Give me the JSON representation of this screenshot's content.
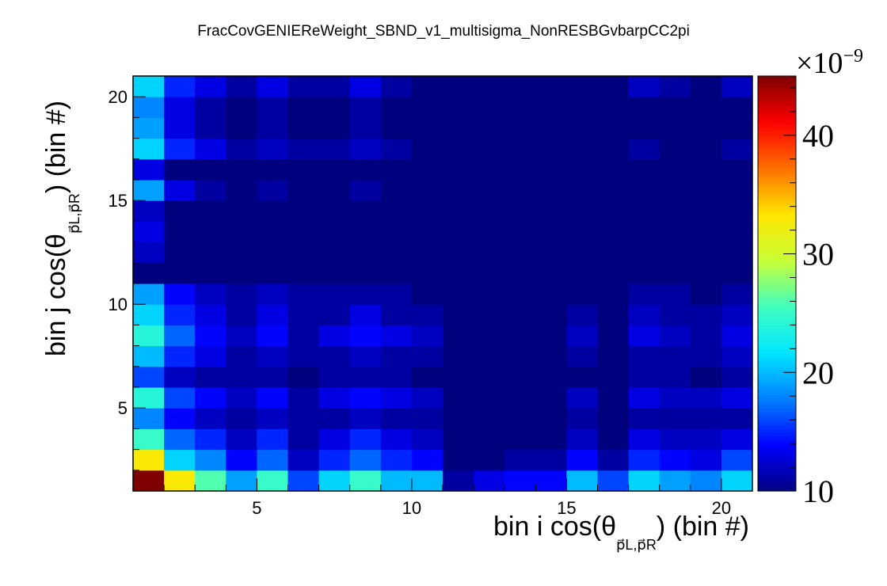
{
  "chart_data": {
    "type": "heatmap",
    "title": "FracCovGENIEReWeight_SBND_v1_multisigma_NonRESBGvbarpCC2pi",
    "xlabel": "bin i cos(θ",
    "xlabel_sub": "p⃗L,p⃗R",
    "xlabel_tail": ") (bin #)",
    "ylabel": "bin j cos(θ",
    "ylabel_sub": "p⃗L,p⃗R",
    "ylabel_tail": ") (bin #)",
    "x_range": [
      1,
      21
    ],
    "y_range": [
      1,
      21
    ],
    "x_ticks": [
      5,
      10,
      15,
      20
    ],
    "y_ticks": [
      5,
      10,
      15,
      20
    ],
    "z_range": [
      10,
      45
    ],
    "z_ticks": [
      10,
      20,
      30,
      40
    ],
    "z_exponent": "×10",
    "z_exponent_power": "−9",
    "palette": [
      "#00007f",
      "#0000ff",
      "#0080ff",
      "#00e5ff",
      "#40ffbf",
      "#c8ff37",
      "#ffe600",
      "#ff7000",
      "#ff0000",
      "#7f0000"
    ],
    "values": [
      [
        45,
        33,
        26,
        19,
        25,
        16,
        21,
        25,
        20,
        20,
        11,
        13,
        14,
        14,
        20,
        16,
        21,
        19,
        18,
        21
      ],
      [
        33,
        21,
        18,
        14,
        17,
        12,
        15,
        17,
        15,
        14,
        10,
        10,
        11,
        11,
        14,
        11,
        15,
        14,
        13,
        16
      ],
      [
        25,
        17,
        15,
        12,
        15,
        11,
        13,
        15,
        13,
        12,
        10,
        10,
        10,
        10,
        12,
        10,
        13,
        12,
        12,
        13
      ],
      [
        18,
        14,
        12,
        11,
        12,
        11,
        11,
        12,
        11,
        11,
        10,
        10,
        10,
        10,
        11,
        10,
        11,
        11,
        11,
        11
      ],
      [
        24,
        16,
        14,
        12,
        14,
        11,
        13,
        14,
        13,
        12,
        10,
        10,
        10,
        10,
        12,
        10,
        13,
        12,
        12,
        13
      ],
      [
        16,
        12,
        11,
        11,
        11,
        10,
        11,
        11,
        11,
        10,
        10,
        10,
        10,
        10,
        10,
        10,
        11,
        11,
        10,
        11
      ],
      [
        20,
        15,
        13,
        11,
        12,
        11,
        11,
        12,
        11,
        11,
        10,
        10,
        10,
        10,
        11,
        10,
        11,
        11,
        11,
        12
      ],
      [
        24,
        17,
        14,
        12,
        14,
        11,
        13,
        14,
        13,
        12,
        10,
        10,
        10,
        10,
        12,
        10,
        13,
        12,
        11,
        13
      ],
      [
        21,
        15,
        13,
        11,
        13,
        11,
        11,
        13,
        11,
        11,
        10,
        10,
        10,
        10,
        11,
        10,
        12,
        11,
        11,
        12
      ],
      [
        19,
        14,
        12,
        11,
        12,
        11,
        11,
        11,
        11,
        10,
        10,
        10,
        10,
        10,
        10,
        10,
        11,
        11,
        10,
        11
      ],
      [
        10,
        10,
        10,
        10,
        10,
        10,
        10,
        10,
        10,
        10,
        10,
        10,
        10,
        10,
        10,
        10,
        10,
        10,
        10,
        10
      ],
      [
        12,
        10,
        10,
        10,
        10,
        10,
        10,
        10,
        10,
        10,
        10,
        10,
        10,
        10,
        10,
        10,
        10,
        10,
        10,
        10
      ],
      [
        13,
        10,
        10,
        10,
        10,
        10,
        10,
        10,
        10,
        10,
        10,
        10,
        10,
        10,
        10,
        10,
        10,
        10,
        10,
        10
      ],
      [
        12,
        10,
        10,
        10,
        10,
        10,
        10,
        10,
        10,
        10,
        10,
        10,
        10,
        10,
        10,
        10,
        10,
        10,
        10,
        10
      ],
      [
        19,
        13,
        11,
        10,
        11,
        10,
        10,
        11,
        10,
        10,
        10,
        10,
        10,
        10,
        10,
        10,
        10,
        10,
        10,
        10
      ],
      [
        13,
        10,
        10,
        10,
        10,
        10,
        10,
        10,
        10,
        10,
        10,
        10,
        10,
        10,
        10,
        10,
        10,
        10,
        10,
        10
      ],
      [
        21,
        15,
        13,
        11,
        12,
        11,
        11,
        12,
        11,
        10,
        10,
        10,
        10,
        10,
        10,
        10,
        11,
        10,
        10,
        11
      ],
      [
        19,
        13,
        11,
        10,
        11,
        10,
        10,
        11,
        10,
        10,
        10,
        10,
        10,
        10,
        10,
        10,
        10,
        10,
        10,
        10
      ],
      [
        18,
        13,
        11,
        10,
        11,
        10,
        10,
        11,
        10,
        10,
        10,
        10,
        10,
        10,
        10,
        10,
        10,
        10,
        10,
        10
      ],
      [
        21,
        15,
        13,
        11,
        13,
        11,
        11,
        13,
        11,
        10,
        10,
        10,
        10,
        10,
        10,
        10,
        12,
        11,
        10,
        12
      ]
    ]
  }
}
